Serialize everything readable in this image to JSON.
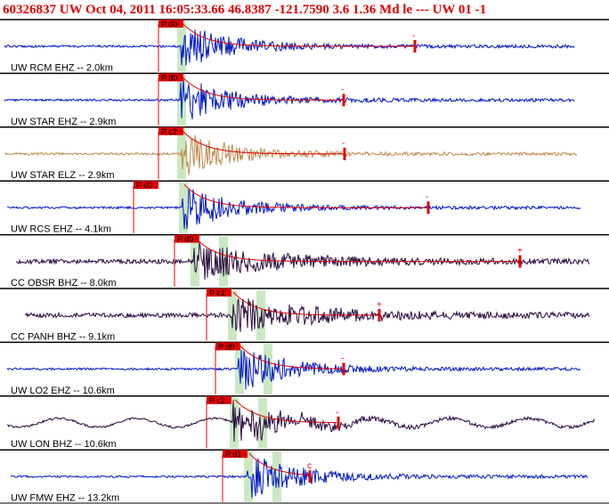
{
  "header": {
    "title": "60326837 UW Oct 04, 2011 16:05:33.66   46.8387 -121.7590  3.6 1.36 Md le --- UW 01  -1"
  },
  "traces": [
    {
      "label": "UW RCM EHZ -- 2.0km",
      "pick": "P d0",
      "end_mark": "-",
      "color": "#0018c8"
    },
    {
      "label": "UW STAR EHZ -- 2.9km",
      "pick": "P d0",
      "end_mark": "-",
      "color": "#0018c8"
    },
    {
      "label": "UW STAR ELZ -- 2.9km",
      "pick": "P c2",
      "end_mark": "-",
      "color": "#c08a50"
    },
    {
      "label": "UW RCS EHZ -- 4.1km",
      "pick": "P c0",
      "end_mark": "-",
      "color": "#0018c8"
    },
    {
      "label": "CC OBSR BHZ -- 8.0km",
      "pick": "P d0",
      "end_mark": "+",
      "color": "#2a0a40"
    },
    {
      "label": "CC PANH BHZ -- 9.1km",
      "pick": "P c2",
      "end_mark": "+",
      "color": "#2a0a40"
    },
    {
      "label": "UW LO2 EHZ -- 10.6km",
      "pick": "P d0",
      "end_mark": "-",
      "color": "#0018c8"
    },
    {
      "label": "UW LON BHZ -- 10.6km",
      "pick": "P c2",
      "end_mark": "-",
      "color": "#2a0a40"
    },
    {
      "label": "UW FMW EHZ -- 13.2km",
      "pick": "P d1",
      "end_mark": "c",
      "color": "#0018c8"
    }
  ]
}
